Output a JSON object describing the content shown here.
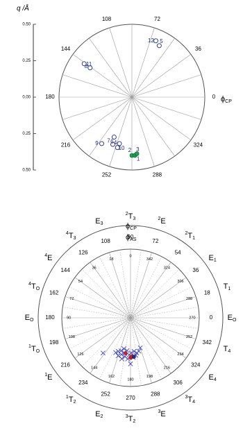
{
  "chart_data": [
    {
      "type": "scatter",
      "coordinate_system": "polar",
      "ylabel": "q /Å",
      "angle_label": "ϕ",
      "angle_label_sub": "CP",
      "radial_range": [
        0,
        0.5
      ],
      "radial_ticks": [
        "0.50",
        "0.25",
        "0.00",
        "0.25",
        "0.50"
      ],
      "angle_ticks": [
        "0",
        "36",
        "72",
        "108",
        "144",
        "180",
        "216",
        "252",
        "288",
        "324"
      ],
      "angle_tick_values": [
        0,
        36,
        72,
        108,
        144,
        180,
        216,
        252,
        288,
        324
      ],
      "grid": true,
      "spoke_count": 20,
      "open_points": [
        {
          "label": "4",
          "phi": 254,
          "q": 0.36
        },
        {
          "label": "7",
          "phi": 248,
          "q": 0.35
        },
        {
          "label": "6",
          "phi": 246,
          "q": 0.3
        },
        {
          "label": "10",
          "phi": 255,
          "q": 0.33
        },
        {
          "label": "9",
          "phi": 237,
          "q": 0.38
        },
        {
          "label": "8",
          "phi": 145,
          "q": 0.35
        },
        {
          "label": "11",
          "phi": 145,
          "q": 0.4
        },
        {
          "label": "5",
          "phi": 62,
          "q": 0.4
        },
        {
          "label": "12",
          "phi": 67,
          "q": 0.42
        }
      ],
      "filled_points": [
        {
          "label": "2",
          "phi": 270,
          "q": 0.4
        },
        {
          "label": "3",
          "phi": 273,
          "q": 0.4
        },
        {
          "label": "1",
          "phi": 275,
          "q": 0.39
        }
      ],
      "colors": {
        "open": "#1f2a8c",
        "filled": "#16a34a",
        "grid": "#9a9a9a"
      }
    },
    {
      "type": "scatter",
      "coordinate_system": "polar",
      "angle_label": "ϕ",
      "angle_label_sub": "CP",
      "inner_angle_label": "ϕ",
      "inner_angle_label_sub": "AS",
      "angle_ticks": [
        "0",
        "18",
        "36",
        "54",
        "72",
        "90",
        "108",
        "126",
        "144",
        "162",
        "180",
        "198",
        "216",
        "234",
        "252",
        "270",
        "288",
        "306",
        "324",
        "342"
      ],
      "angle_tick_values": [
        0,
        18,
        36,
        54,
        72,
        90,
        108,
        126,
        144,
        162,
        180,
        198,
        216,
        234,
        252,
        270,
        288,
        306,
        324,
        342
      ],
      "inner_ticks": [
        "0",
        "18",
        "36",
        "54",
        "72",
        "90",
        "108",
        "126",
        "144",
        "162",
        "180",
        "198",
        "216",
        "234",
        "252",
        "270",
        "288",
        "306",
        "324",
        "342"
      ],
      "inner_tick_values": [
        90,
        108,
        126,
        144,
        162,
        180,
        198,
        216,
        234,
        252,
        270,
        288,
        306,
        324,
        342,
        0,
        18,
        36,
        54,
        72
      ],
      "conformations": [
        {
          "pre": "",
          "main": "E",
          "sub": "O",
          "phi": 0
        },
        {
          "pre": "",
          "main": "T",
          "sub": "1",
          "phi": 18
        },
        {
          "pre": "",
          "main": "E",
          "sub": "1",
          "phi": 36
        },
        {
          "pre": "2",
          "main": "T",
          "sub": "1",
          "phi": 54
        },
        {
          "pre": "2",
          "main": "E",
          "sub": "",
          "phi": 72
        },
        {
          "pre": "2",
          "main": "T",
          "sub": "3",
          "phi": 90
        },
        {
          "pre": "",
          "main": "E",
          "sub": "3",
          "phi": 108
        },
        {
          "pre": "4",
          "main": "T",
          "sub": "3",
          "phi": 126
        },
        {
          "pre": "4",
          "main": "E",
          "sub": "",
          "phi": 144
        },
        {
          "pre": "4",
          "main": "T",
          "sub": "O",
          "phi": 162
        },
        {
          "pre": "",
          "main": "E",
          "sub": "O",
          "phi": 180
        },
        {
          "pre": "1",
          "main": "T",
          "sub": "O",
          "phi": 198
        },
        {
          "pre": "1",
          "main": "E",
          "sub": "",
          "phi": 216
        },
        {
          "pre": "1",
          "main": "T",
          "sub": "2",
          "phi": 234
        },
        {
          "pre": "",
          "main": "E",
          "sub": "2",
          "phi": 252
        },
        {
          "pre": "3",
          "main": "T",
          "sub": "2",
          "phi": 270
        },
        {
          "pre": "3",
          "main": "E",
          "sub": "",
          "phi": 288
        },
        {
          "pre": "3",
          "main": "T",
          "sub": "4",
          "phi": 306
        },
        {
          "pre": "",
          "main": "E",
          "sub": "4",
          "phi": 324
        },
        {
          "pre": "",
          "main": "T",
          "sub": "4",
          "phi": 342
        }
      ],
      "cross_points": [
        {
          "phi": 232,
          "q": 0.65
        },
        {
          "phi": 247,
          "q": 0.55
        },
        {
          "phi": 250,
          "q": 0.52
        },
        {
          "phi": 252,
          "q": 0.58
        },
        {
          "phi": 254,
          "q": 0.5
        },
        {
          "phi": 256,
          "q": 0.55
        },
        {
          "phi": 258,
          "q": 0.61
        },
        {
          "phi": 260,
          "q": 0.52
        },
        {
          "phi": 262,
          "q": 0.57
        },
        {
          "phi": 264,
          "q": 0.48
        },
        {
          "phi": 266,
          "q": 0.6
        },
        {
          "phi": 268,
          "q": 0.54
        },
        {
          "phi": 270,
          "q": 0.67
        },
        {
          "phi": 271,
          "q": 0.51
        },
        {
          "phi": 274,
          "q": 0.58
        },
        {
          "phi": 276,
          "q": 0.49
        },
        {
          "phi": 278,
          "q": 0.55
        },
        {
          "phi": 280,
          "q": 0.52
        },
        {
          "phi": 284,
          "q": 0.5
        },
        {
          "phi": 288,
          "q": 0.46
        },
        {
          "phi": 258,
          "q": 0.46
        }
      ],
      "red_points": [
        {
          "phi": 262,
          "q": 0.52
        },
        {
          "phi": 270,
          "q": 0.58
        },
        {
          "phi": 272,
          "q": 0.56
        }
      ],
      "blue_filled_points": [
        {
          "phi": 275,
          "q": 0.57
        }
      ],
      "colors": {
        "cross": "#3d46c4",
        "red": "#d62020",
        "blue": "#1f2a8c",
        "grid": "#9a9a9a"
      }
    }
  ]
}
